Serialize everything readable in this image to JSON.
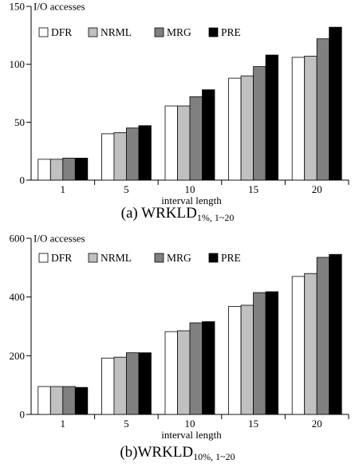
{
  "colors": {
    "DFR": "#ffffff",
    "NRML": "#c0c0c0",
    "MRG": "#808080",
    "PRE": "#000000"
  },
  "chart_data": [
    {
      "type": "bar",
      "ylabel": "I/O accesses",
      "xlabel": "interval length",
      "categories": [
        "1",
        "5",
        "10",
        "15",
        "20"
      ],
      "ylim": [
        0,
        150
      ],
      "yticks": [
        "0",
        "50",
        "100",
        "150"
      ],
      "legend_position": "top-left",
      "grid": false,
      "series": [
        {
          "name": "DFR",
          "values": [
            18,
            40,
            64,
            88,
            106
          ]
        },
        {
          "name": "NRML",
          "values": [
            18,
            41,
            64,
            90,
            107
          ]
        },
        {
          "name": "MRG",
          "values": [
            19,
            45,
            72,
            98,
            122
          ]
        },
        {
          "name": "PRE",
          "values": [
            19,
            47,
            78,
            108,
            132
          ]
        }
      ],
      "caption_main": "(a) WRKLD",
      "caption_sub": "1%, 1~20"
    },
    {
      "type": "bar",
      "ylabel": "I/O accesses",
      "xlabel": "interval length",
      "categories": [
        "1",
        "5",
        "10",
        "15",
        "20"
      ],
      "ylim": [
        0,
        600
      ],
      "yticks": [
        "0",
        "200",
        "400",
        "600"
      ],
      "legend_position": "top-left",
      "grid": false,
      "series": [
        {
          "name": "DFR",
          "values": [
            95,
            192,
            282,
            368,
            470
          ]
        },
        {
          "name": "NRML",
          "values": [
            95,
            195,
            285,
            372,
            480
          ]
        },
        {
          "name": "MRG",
          "values": [
            95,
            210,
            312,
            415,
            535
          ]
        },
        {
          "name": "PRE",
          "values": [
            92,
            210,
            316,
            418,
            545
          ]
        }
      ],
      "caption_main": "(b)WRKLD",
      "caption_sub": "10%, 1~20"
    }
  ]
}
